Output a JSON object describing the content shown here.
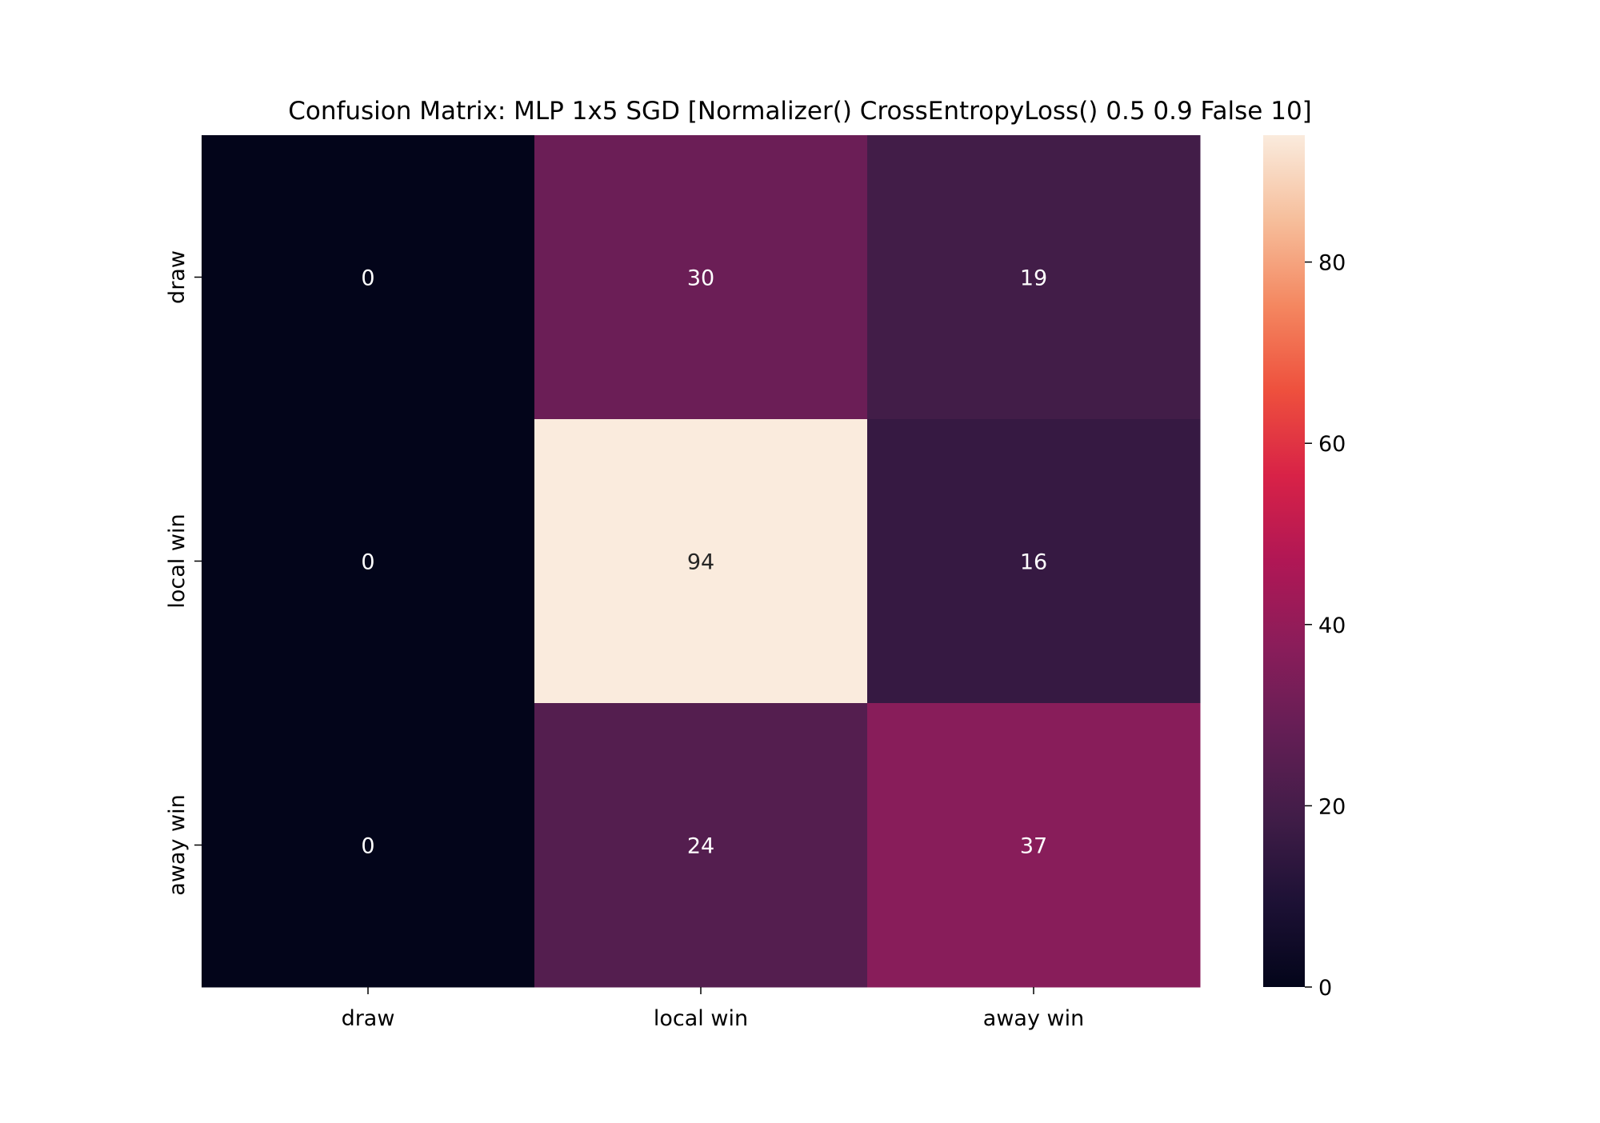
{
  "chart_data": {
    "type": "heatmap",
    "title": "Confusion Matrix: MLP 1x5 SGD [Normalizer() CrossEntropyLoss() 0.5 0.9 False 10]",
    "xlabel": "",
    "ylabel": "",
    "x_categories": [
      "draw",
      "local win",
      "away win"
    ],
    "y_categories": [
      "draw",
      "local win",
      "away win"
    ],
    "values": [
      [
        0,
        30,
        19
      ],
      [
        0,
        94,
        16
      ],
      [
        0,
        24,
        37
      ]
    ],
    "colorbar": {
      "colormap": "rocket",
      "range": [
        0,
        94
      ],
      "ticks": [
        0,
        20,
        40,
        60,
        80
      ]
    },
    "grid": false,
    "legend": "colorbar-right"
  }
}
